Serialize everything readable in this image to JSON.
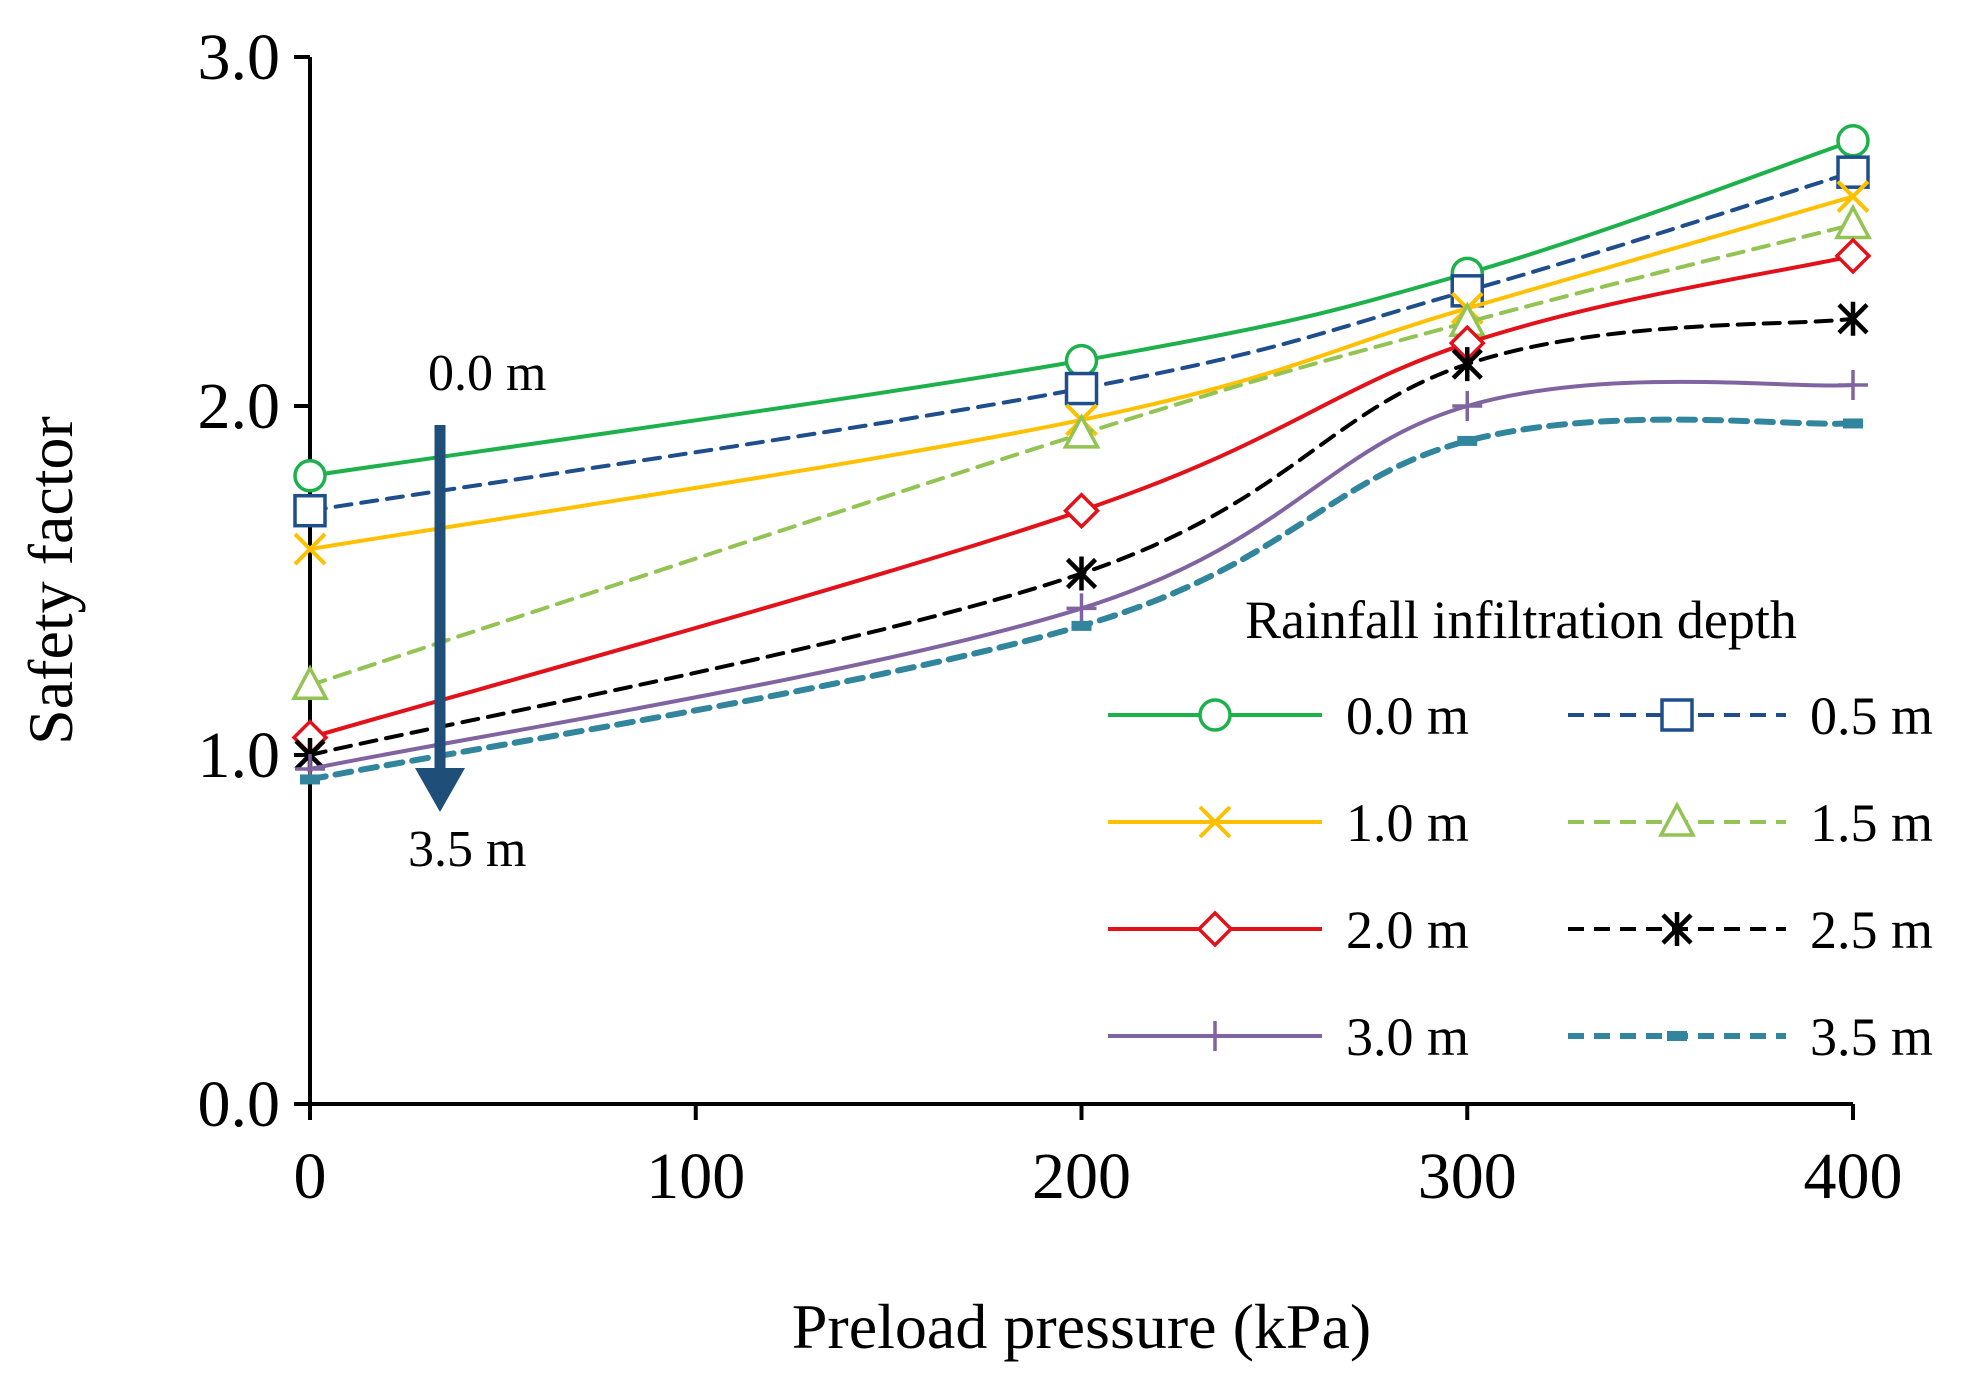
{
  "chart_data": {
    "type": "line",
    "title": "",
    "xlabel": "Preload pressure (kPa)",
    "ylabel": "Safety factor",
    "xlim": [
      0,
      400
    ],
    "ylim": [
      0,
      3
    ],
    "x_ticks": [
      0,
      100,
      200,
      300,
      400
    ],
    "x_tick_labels": [
      "0",
      "100",
      "200",
      "300",
      "400"
    ],
    "y_ticks": [
      0,
      1,
      2,
      3
    ],
    "y_tick_labels": [
      "0.0",
      "1.0",
      "2.0",
      "3.0"
    ],
    "x": [
      0,
      200,
      300,
      400
    ],
    "legend_title": "Rainfall infiltration depth",
    "legend_position": "right",
    "series": [
      {
        "name": "0.0 m",
        "values": [
          1.8,
          2.13,
          2.38,
          2.76
        ],
        "color": "#1db14b",
        "dash": "solid",
        "marker": "circle"
      },
      {
        "name": "0.5 m",
        "values": [
          1.7,
          2.05,
          2.33,
          2.67
        ],
        "color": "#1f4e8c",
        "dash": "dashed",
        "marker": "square"
      },
      {
        "name": "1.0 m",
        "values": [
          1.59,
          1.96,
          2.28,
          2.6
        ],
        "color": "#ffc000",
        "dash": "solid",
        "marker": "x"
      },
      {
        "name": "1.5 m",
        "values": [
          1.2,
          1.92,
          2.24,
          2.52
        ],
        "color": "#92c353",
        "dash": "dashed",
        "marker": "triangle"
      },
      {
        "name": "2.0 m",
        "values": [
          1.05,
          1.7,
          2.18,
          2.43
        ],
        "color": "#e2111a",
        "dash": "solid",
        "marker": "diamond"
      },
      {
        "name": "2.5 m",
        "values": [
          1.0,
          1.52,
          2.12,
          2.25
        ],
        "color": "#000000",
        "dash": "dashed",
        "marker": "star"
      },
      {
        "name": "3.0 m",
        "values": [
          0.96,
          1.42,
          2.0,
          2.06
        ],
        "color": "#8064a2",
        "dash": "solid",
        "marker": "plus"
      },
      {
        "name": "3.5 m",
        "values": [
          0.93,
          1.37,
          1.9,
          1.95
        ],
        "color": "#31859c",
        "dash": "dashed",
        "marker": "dash"
      }
    ],
    "annotations": {
      "arrow_start_label": "0.0 m",
      "arrow_end_label": "3.5 m",
      "arrow_color": "#1f4e79"
    }
  }
}
